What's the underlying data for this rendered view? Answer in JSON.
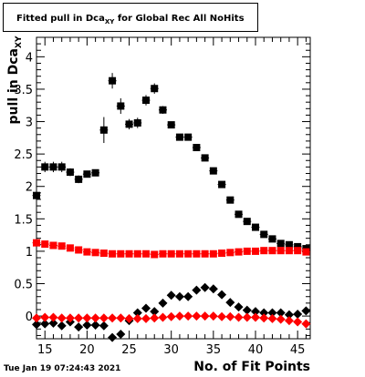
{
  "title": {
    "prefix": "Fitted pull in Dca",
    "sub": "XY",
    "suffix": " for Global Rec All NoHits"
  },
  "ylabel": {
    "main": "pull in Dca",
    "sub": "XY"
  },
  "xlabel": "No. of Fit Points",
  "timestamp": "Tue Jan 19 07:24:43 2021",
  "chart_data": {
    "type": "scatter",
    "xlim": [
      14,
      46.5
    ],
    "ylim": [
      -0.35,
      4.3
    ],
    "x_ticks": [
      15,
      20,
      25,
      30,
      35,
      40,
      45
    ],
    "y_ticks": [
      0,
      0.5,
      1,
      1.5,
      2,
      2.5,
      3,
      3.5,
      4
    ],
    "y_tick_labels": [
      "0",
      "0.5",
      "1",
      "1.5",
      "2",
      "2.5",
      "3",
      "3.5",
      "4"
    ],
    "grid": false,
    "series": [
      {
        "color": "#000000",
        "marker": "square",
        "x": [
          14,
          15,
          16,
          17,
          18,
          19,
          20,
          21,
          22,
          23,
          24,
          25,
          26,
          27,
          28,
          29,
          30,
          31,
          32,
          33,
          34,
          35,
          36,
          37,
          38,
          39,
          40,
          41,
          42,
          43,
          44,
          45,
          46
        ],
        "y": [
          1.86,
          2.3,
          2.3,
          2.3,
          2.22,
          2.11,
          2.19,
          2.21,
          2.87,
          3.63,
          3.24,
          2.96,
          2.98,
          3.33,
          3.51,
          3.18,
          2.95,
          2.76,
          2.76,
          2.6,
          2.44,
          2.24,
          2.03,
          1.79,
          1.57,
          1.46,
          1.37,
          1.26,
          1.19,
          1.12,
          1.1,
          1.07,
          1.04
        ],
        "yerr": [
          0.07,
          0.08,
          0.08,
          0.08,
          0.06,
          0.06,
          0.05,
          0.05,
          0.2,
          0.12,
          0.12,
          0.08,
          0.08,
          0.08,
          0.08,
          0.06,
          0.05,
          0.04,
          0.04,
          0.03,
          0.03,
          0.03,
          0.02,
          0.02,
          0.02,
          0.02,
          0.02,
          0.02,
          0.02,
          0.02,
          0.02,
          0.02,
          0.02
        ]
      },
      {
        "color": "#ff0000",
        "marker": "square",
        "x": [
          14,
          15,
          16,
          17,
          18,
          19,
          20,
          21,
          22,
          23,
          24,
          25,
          26,
          27,
          28,
          29,
          30,
          31,
          32,
          33,
          34,
          35,
          36,
          37,
          38,
          39,
          40,
          41,
          42,
          43,
          44,
          45,
          46
        ],
        "y": [
          1.13,
          1.11,
          1.09,
          1.08,
          1.05,
          1.02,
          0.99,
          0.98,
          0.97,
          0.96,
          0.96,
          0.96,
          0.96,
          0.96,
          0.95,
          0.96,
          0.96,
          0.96,
          0.96,
          0.96,
          0.96,
          0.96,
          0.97,
          0.98,
          0.99,
          1.0,
          1.0,
          1.01,
          1.01,
          1.01,
          1.01,
          1.01,
          0.99
        ]
      },
      {
        "color": "#000000",
        "marker": "diamond",
        "x": [
          14,
          15,
          16,
          17,
          18,
          19,
          20,
          21,
          22,
          23,
          24,
          25,
          26,
          27,
          28,
          29,
          30,
          31,
          32,
          33,
          34,
          35,
          36,
          37,
          38,
          39,
          40,
          41,
          42,
          43,
          44,
          45,
          46
        ],
        "y": [
          -0.13,
          -0.12,
          -0.11,
          -0.15,
          -0.09,
          -0.17,
          -0.14,
          -0.14,
          -0.15,
          -0.33,
          -0.28,
          -0.07,
          0.05,
          0.12,
          0.07,
          0.2,
          0.32,
          0.3,
          0.3,
          0.4,
          0.44,
          0.42,
          0.33,
          0.21,
          0.14,
          0.09,
          0.07,
          0.05,
          0.05,
          0.05,
          0.02,
          0.03,
          0.08
        ]
      },
      {
        "color": "#ff0000",
        "marker": "diamond",
        "x": [
          14,
          15,
          16,
          17,
          18,
          19,
          20,
          21,
          22,
          23,
          24,
          25,
          26,
          27,
          28,
          29,
          30,
          31,
          32,
          33,
          34,
          35,
          36,
          37,
          38,
          39,
          40,
          41,
          42,
          43,
          44,
          45,
          46
        ],
        "y": [
          -0.03,
          -0.02,
          -0.02,
          -0.03,
          -0.03,
          -0.03,
          -0.03,
          -0.03,
          -0.03,
          -0.03,
          -0.03,
          -0.04,
          -0.04,
          -0.04,
          -0.03,
          -0.02,
          -0.01,
          0.0,
          0.0,
          0.0,
          0.0,
          0.0,
          -0.01,
          -0.01,
          -0.02,
          -0.02,
          -0.02,
          -0.03,
          -0.04,
          -0.05,
          -0.07,
          -0.09,
          -0.12
        ]
      }
    ]
  }
}
